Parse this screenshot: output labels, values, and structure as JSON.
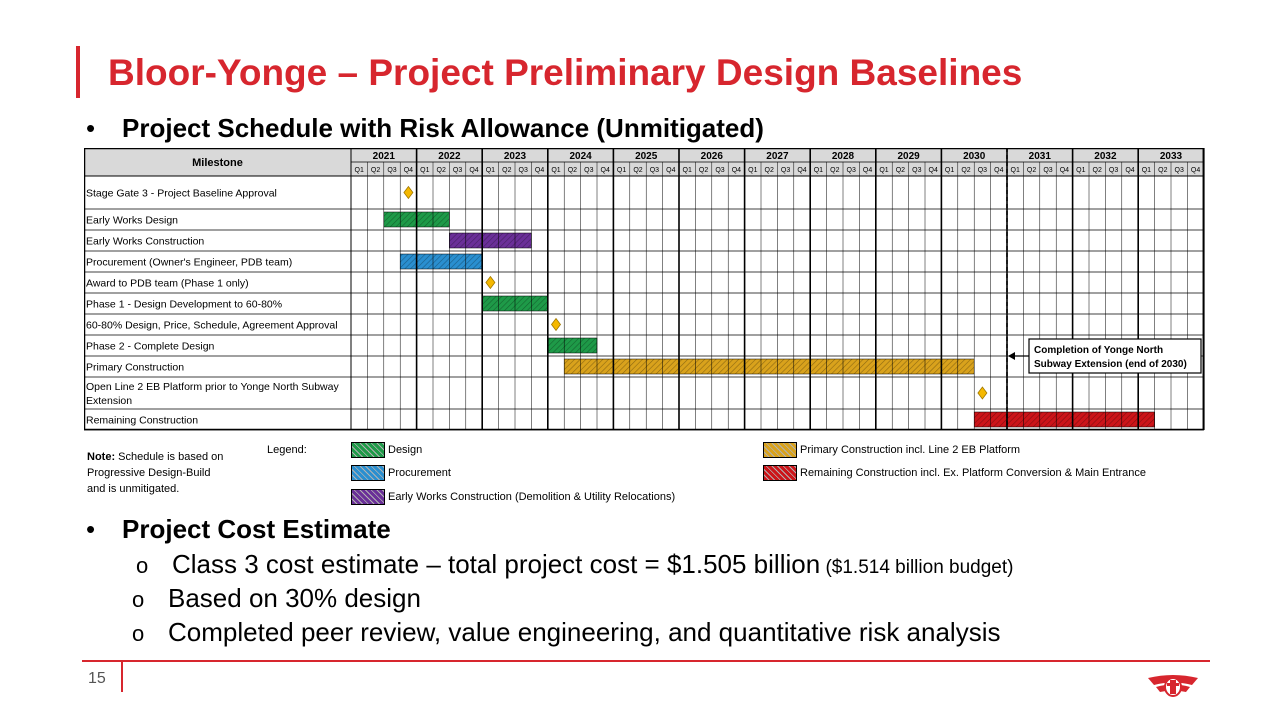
{
  "title": "Bloor-Yonge – Project Preliminary Design Baselines",
  "section1_title": "Project Schedule with Risk Allowance (Unmitigated)",
  "gantt": {
    "milestone_header": "Milestone",
    "years": [
      "2021",
      "2022",
      "2023",
      "2024",
      "2025",
      "2026",
      "2027",
      "2028",
      "2029",
      "2030",
      "2031",
      "2032",
      "2033"
    ],
    "quarters": [
      "Q1",
      "Q2",
      "Q3",
      "Q4"
    ],
    "rows": [
      {
        "label": "Stage Gate 3 - Project Baseline Approval",
        "type": "diamond",
        "quarter_index": 3
      },
      {
        "label": "Early Works Design",
        "type": "bar",
        "start": 2,
        "end": 6,
        "color": "design"
      },
      {
        "label": "Early Works Construction",
        "type": "bar",
        "start": 6,
        "end": 11,
        "color": "early"
      },
      {
        "label": "Procurement (Owner's Engineer, PDB team)",
        "type": "bar",
        "start": 3,
        "end": 8,
        "color": "procurement"
      },
      {
        "label": "Award to PDB team (Phase 1 only)",
        "type": "diamond",
        "quarter_index": 8
      },
      {
        "label": "Phase 1 - Design Development to 60-80%",
        "type": "bar",
        "start": 8,
        "end": 12,
        "color": "design"
      },
      {
        "label": "60-80% Design, Price, Schedule, Agreement Approval",
        "type": "diamond",
        "quarter_index": 12
      },
      {
        "label": "Phase 2 - Complete Design",
        "type": "bar",
        "start": 12,
        "end": 15,
        "color": "design"
      },
      {
        "label": "Primary Construction",
        "type": "bar",
        "start": 13,
        "end": 38,
        "color": "primary"
      },
      {
        "label": "Open Line 2 EB Platform prior to Yonge North Subway Extension",
        "label_lines": [
          "Open Line 2 EB Platform prior to Yonge North Subway",
          "Extension"
        ],
        "type": "diamond",
        "quarter_index": 38
      },
      {
        "label": "Remaining Construction",
        "type": "bar",
        "start": 38,
        "end": 49,
        "color": "remaining"
      }
    ],
    "callout_lines": [
      "Completion of Yonge North",
      "Subway Extension (end of 2030)"
    ]
  },
  "colors": {
    "design": "#1e9a48",
    "procurement": "#2a8fd0",
    "early": "#6a2f98",
    "primary": "#d9a21c",
    "remaining": "#cc1419",
    "diamond": "#f5b800",
    "accent": "#d7262e"
  },
  "note": {
    "bold": "Note:",
    "text": " Schedule is based on Progressive Design-Build and is unmitigated."
  },
  "legend": {
    "label": "Legend:",
    "design": "Design",
    "procurement": "Procurement",
    "early": "Early Works Construction (Demolition & Utility Relocations)",
    "primary": "Primary Construction incl. Line 2 EB Platform",
    "remaining": "Remaining Construction incl. Ex. Platform Conversion & Main Entrance"
  },
  "section2_title": "Project Cost Estimate",
  "cost": {
    "line1_main": "Class 3 cost estimate – total project cost = $1.505 billion",
    "line1_small": " ($1.514 billion budget)",
    "line2": "Based on 30% design",
    "line3": "Completed peer review, value engineering, and quantitative risk analysis"
  },
  "page_number": "15",
  "bullet_symbol": "•",
  "sub_bullet_symbol": "o"
}
